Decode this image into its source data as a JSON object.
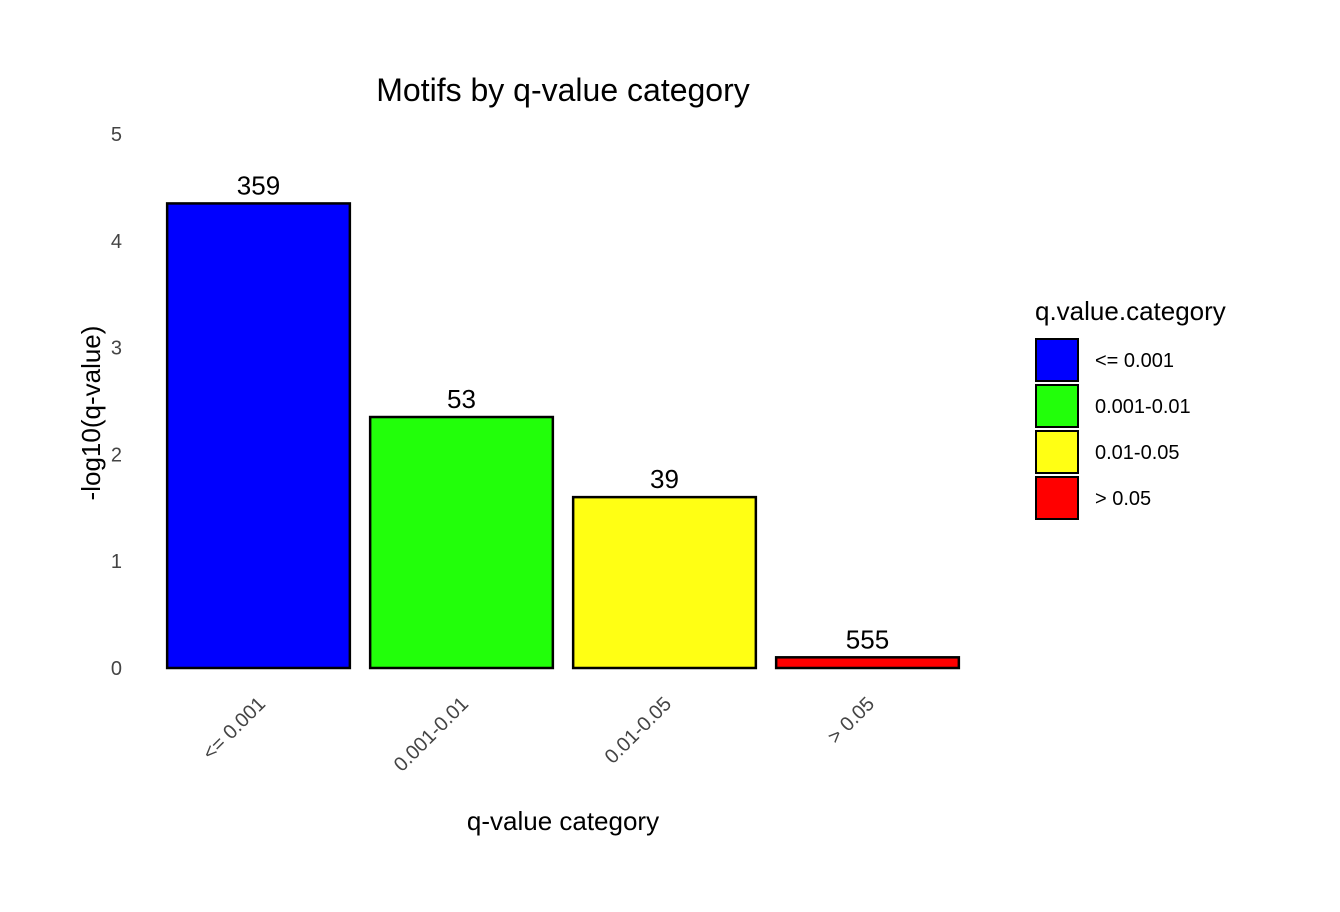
{
  "chart_data": {
    "type": "bar",
    "title": "Motifs by q-value category",
    "xlabel": "q-value category",
    "ylabel": "-log10(q-value)",
    "categories": [
      "<= 0.001",
      "0.001-0.01",
      "0.01-0.05",
      "> 0.05"
    ],
    "values": [
      4.35,
      2.35,
      1.6,
      0.1
    ],
    "data_labels": [
      "359",
      "53",
      "39",
      "555"
    ],
    "colors": [
      "#0000ff",
      "#22ff0a",
      "#ffff14",
      "#ff0000"
    ],
    "ylim": [
      0,
      5
    ],
    "yticks": [
      "0",
      "1",
      "2",
      "3",
      "4",
      "5"
    ],
    "grid": false,
    "legend": {
      "title": "q.value.category",
      "placement": "right",
      "items": [
        "<= 0.001",
        "0.001-0.01",
        "0.01-0.05",
        "> 0.05"
      ]
    }
  }
}
